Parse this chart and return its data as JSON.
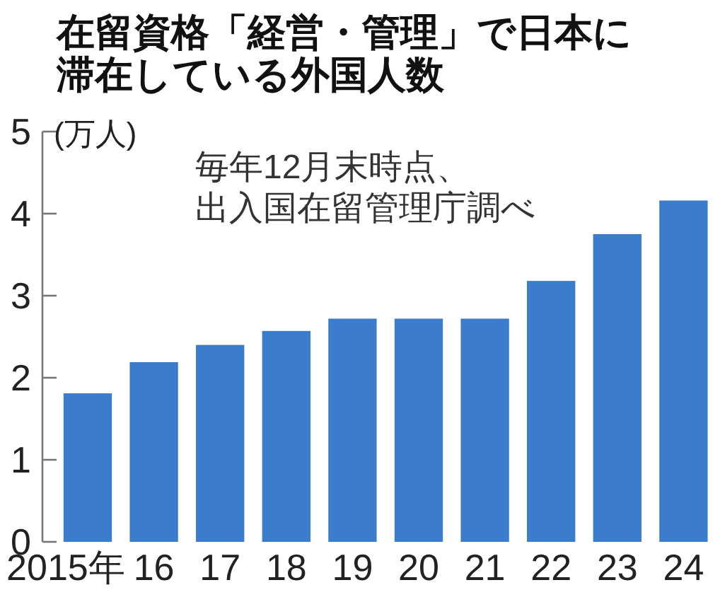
{
  "chart_data": {
    "type": "bar",
    "title": "在留資格「経営・管理」で日本に滞在している外国人数",
    "ylabel": "(万人)",
    "annotations": [
      "毎年12月末時点、出入国在留管理庁調べ"
    ],
    "categories": [
      "2015年",
      "16",
      "17",
      "18",
      "19",
      "20",
      "21",
      "22",
      "23",
      "24"
    ],
    "values": [
      1.81,
      2.19,
      2.4,
      2.57,
      2.72,
      2.72,
      2.72,
      3.18,
      3.75,
      4.16
    ],
    "color": "#3b7dcc",
    "ylim": [
      0,
      5
    ],
    "yticks": [
      0,
      1,
      2,
      3,
      4,
      5
    ]
  }
}
